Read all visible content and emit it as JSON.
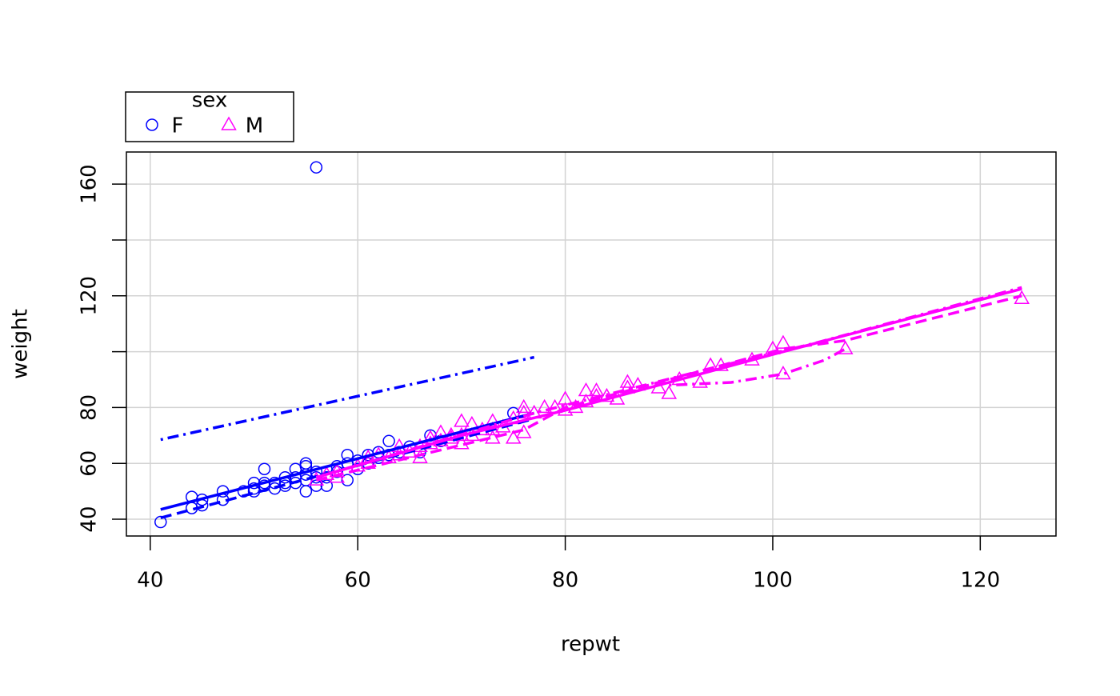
{
  "chart_data": {
    "type": "scatter",
    "x_label": "repwt",
    "y_label": "weight",
    "legend_title": "sex",
    "legend": "top-left-outside",
    "grid": true,
    "xlim": [
      37.7,
      127.3
    ],
    "ylim": [
      34.0,
      171.5
    ],
    "xticks": [
      40,
      60,
      80,
      100,
      120
    ],
    "yticks": [
      40,
      60,
      80,
      {
        "value": 100,
        "label": null
      },
      120,
      {
        "value": 140,
        "label": null
      },
      160
    ],
    "series": [
      {
        "name": "F",
        "color": "#0000ff",
        "marker": "circle",
        "x": [
          41,
          44,
          44,
          45,
          45,
          47,
          47,
          49,
          50,
          50,
          50,
          51,
          51,
          51,
          52,
          52,
          53,
          53,
          53,
          54,
          54,
          54,
          55,
          55,
          55,
          55,
          55,
          56,
          56,
          56,
          56,
          57,
          57,
          58,
          58,
          59,
          59,
          59,
          60,
          60,
          61,
          61,
          62,
          62,
          63,
          63,
          64,
          65,
          66,
          67,
          68,
          75
        ],
        "values": [
          39,
          44,
          48,
          45,
          47,
          47,
          50,
          50,
          50,
          51,
          53,
          52,
          53,
          58,
          51,
          53,
          52,
          53,
          55,
          53,
          55,
          58,
          50,
          54,
          56,
          59,
          60,
          52,
          55,
          57,
          166,
          52,
          55,
          57,
          59,
          54,
          60,
          63,
          58,
          61,
          60,
          63,
          62,
          64,
          63,
          68,
          64,
          66,
          64,
          70,
          68,
          78
        ]
      },
      {
        "name": "M",
        "color": "#ff00ff",
        "marker": "triangle",
        "x": [
          56,
          57,
          58,
          58,
          60,
          61,
          61,
          62,
          63,
          64,
          64,
          65,
          66,
          66,
          67,
          67,
          68,
          68,
          69,
          69,
          70,
          70,
          70,
          71,
          71,
          72,
          73,
          73,
          73,
          74,
          75,
          75,
          76,
          76,
          76,
          77,
          78,
          79,
          80,
          80,
          81,
          82,
          82,
          83,
          83,
          84,
          85,
          86,
          86,
          87,
          89,
          90,
          91,
          93,
          94,
          95,
          98,
          100,
          101,
          101,
          107,
          124
        ],
        "values": [
          54,
          56,
          55,
          57,
          59,
          60,
          62,
          63,
          62,
          63,
          66,
          64,
          62,
          66,
          67,
          69,
          68,
          71,
          69,
          70,
          67,
          70,
          75,
          70,
          74,
          72,
          69,
          72,
          75,
          73,
          69,
          76,
          71,
          78,
          80,
          78,
          80,
          80,
          79,
          83,
          80,
          82,
          86,
          84,
          86,
          84,
          83,
          87,
          89,
          88,
          87,
          85,
          90,
          89,
          95,
          95,
          97,
          101,
          92,
          103,
          101,
          119
        ]
      }
    ],
    "lines": [
      {
        "color": "#0000ff",
        "dash": "solid",
        "x": [
          41,
          77
        ],
        "y": [
          43.5,
          78
        ]
      },
      {
        "color": "#0000ff",
        "dash": "dashed",
        "x": [
          41,
          77
        ],
        "y": [
          40.5,
          76
        ]
      },
      {
        "color": "#0000ff",
        "dash": "dotdash",
        "x": [
          41,
          77
        ],
        "y": [
          68.5,
          98
        ]
      },
      {
        "color": "#ff00ff",
        "dash": "solid",
        "x": [
          56,
          70,
          80,
          100,
          124
        ],
        "y": [
          55,
          70,
          79,
          99,
          122.5
        ]
      },
      {
        "color": "#ff00ff",
        "dash": "dashed",
        "x": [
          56,
          76,
          80,
          101,
          107,
          124
        ],
        "y": [
          54,
          72,
          80,
          101,
          104,
          120
        ]
      },
      {
        "color": "#ff00ff",
        "dash": "dotdash",
        "x": [
          56,
          77,
          94,
          104,
          124
        ],
        "y": [
          55,
          78,
          94,
          103,
          123
        ]
      },
      {
        "color": "#ff00ff",
        "dash": "dotdash",
        "x": [
          90,
          96,
          101,
          105,
          107
        ],
        "y": [
          88,
          89,
          92,
          97,
          101
        ]
      }
    ]
  }
}
